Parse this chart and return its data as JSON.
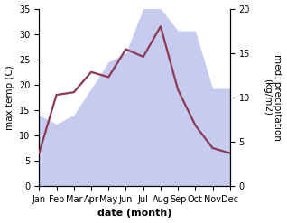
{
  "months": [
    "Jan",
    "Feb",
    "Mar",
    "Apr",
    "May",
    "Jun",
    "Jul",
    "Aug",
    "Sep",
    "Oct",
    "Nov",
    "Dec"
  ],
  "max_temp": [
    6.5,
    18.0,
    18.5,
    22.5,
    21.5,
    27.0,
    25.5,
    31.5,
    19.0,
    12.0,
    7.5,
    6.5
  ],
  "precipitation": [
    8.0,
    7.0,
    8.0,
    11.0,
    14.0,
    15.0,
    20.0,
    20.0,
    17.5,
    17.5,
    11.0,
    11.0
  ],
  "temp_color": "#8B3A52",
  "precip_fill_color": "#c5ccf0",
  "ylim_temp": [
    0,
    35
  ],
  "ylim_precip": [
    0,
    20
  ],
  "ylabel_left": "max temp (C)",
  "ylabel_right": "med. precipitation\n(kg/m2)",
  "xlabel": "date (month)",
  "bg_color": "#ffffff",
  "temp_linewidth": 1.6,
  "xlabel_fontsize": 8,
  "ylabel_fontsize": 7.5
}
